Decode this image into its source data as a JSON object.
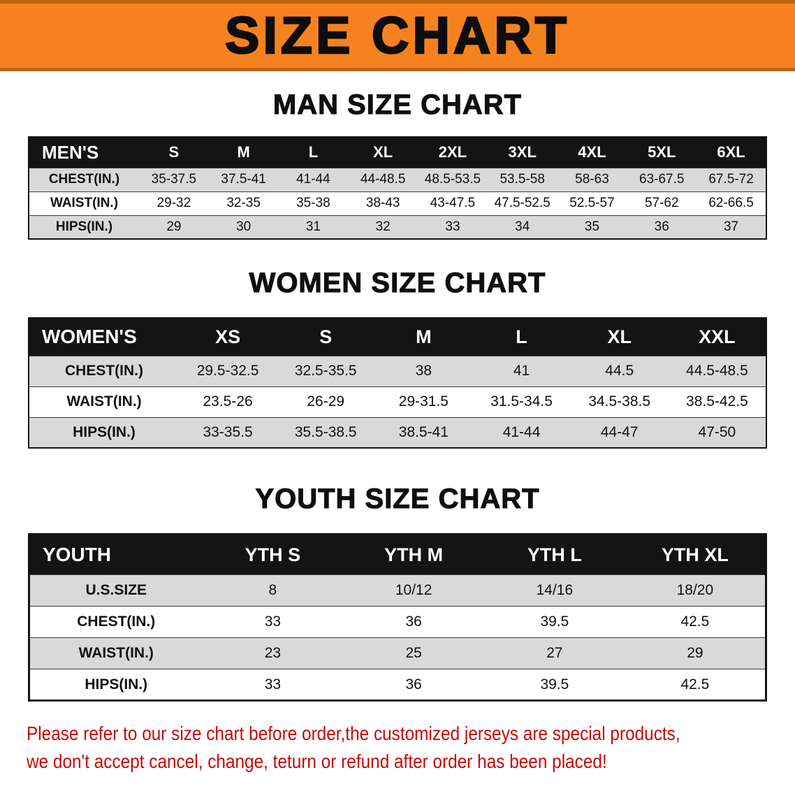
{
  "banner": {
    "title": "SIZE CHART"
  },
  "sections": [
    {
      "id": "men",
      "heading": "MAN SIZE CHART",
      "table": {
        "header": [
          "MEN'S",
          "S",
          "M",
          "L",
          "XL",
          "2XL",
          "3XL",
          "4XL",
          "5XL",
          "6XL"
        ],
        "rows": [
          {
            "label": "CHEST(IN.)",
            "values": [
              "35-37.5",
              "37.5-41",
              "41-44",
              "44-48.5",
              "48.5-53.5",
              "53.5-58",
              "58-63",
              "63-67.5",
              "67.5-72"
            ]
          },
          {
            "label": "WAIST(IN.)",
            "values": [
              "29-32",
              "32-35",
              "35-38",
              "38-43",
              "43-47.5",
              "47.5-52.5",
              "52.5-57",
              "57-62",
              "62-66.5"
            ]
          },
          {
            "label": "HIPS(IN.)",
            "values": [
              "29",
              "30",
              "31",
              "32",
              "33",
              "34",
              "35",
              "36",
              "37"
            ]
          }
        ]
      }
    },
    {
      "id": "women",
      "heading": "WOMEN SIZE CHART",
      "table": {
        "header": [
          "WOMEN'S",
          "XS",
          "S",
          "M",
          "L",
          "XL",
          "XXL"
        ],
        "rows": [
          {
            "label": "CHEST(IN.)",
            "values": [
              "29.5-32.5",
              "32.5-35.5",
              "38",
              "41",
              "44.5",
              "44.5-48.5"
            ]
          },
          {
            "label": "WAIST(IN.)",
            "values": [
              "23.5-26",
              "26-29",
              "29-31.5",
              "31.5-34.5",
              "34.5-38.5",
              "38.5-42.5"
            ]
          },
          {
            "label": "HIPS(IN.)",
            "values": [
              "33-35.5",
              "35.5-38.5",
              "38.5-41",
              "41-44",
              "44-47",
              "47-50"
            ]
          }
        ]
      }
    },
    {
      "id": "youth",
      "heading": "YOUTH SIZE CHART",
      "table": {
        "header": [
          "YOUTH",
          "YTH S",
          "YTH M",
          "YTH L",
          "YTH XL"
        ],
        "rows": [
          {
            "label": "U.S.SIZE",
            "values": [
              "8",
              "10/12",
              "14/16",
              "18/20"
            ]
          },
          {
            "label": "CHEST(IN.)",
            "values": [
              "33",
              "36",
              "39.5",
              "42.5"
            ]
          },
          {
            "label": "WAIST(IN.)",
            "values": [
              "23",
              "25",
              "27",
              "29"
            ]
          },
          {
            "label": "HIPS(IN.)",
            "values": [
              "33",
              "36",
              "39.5",
              "42.5"
            ]
          }
        ]
      }
    }
  ],
  "footer": {
    "line1": "Please refer to our size chart before order,the customized jerseys are special products,",
    "line2": "we don't accept cancel, change, teturn or refund after order has been placed!"
  },
  "colors": {
    "banner_orange": "#f5821f",
    "banner_edge": "#bd6412",
    "header_black": "#141414",
    "row_gray": "#d9d9d9",
    "footer_red": "#c40c0c"
  }
}
